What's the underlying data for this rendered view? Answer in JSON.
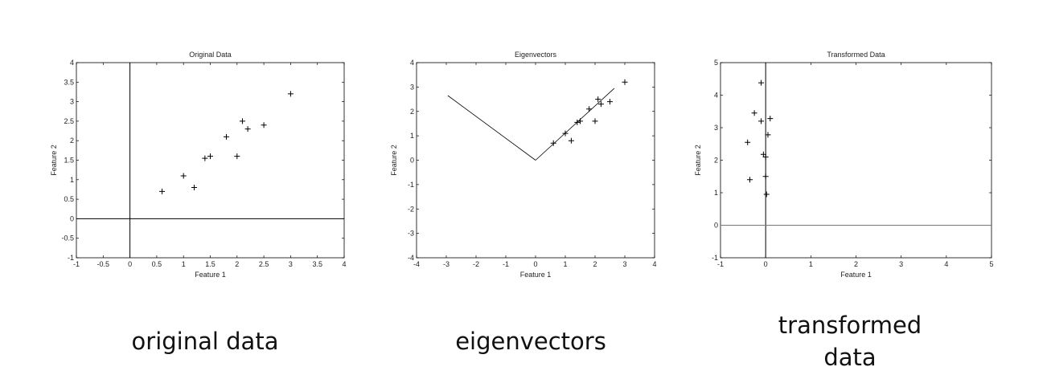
{
  "chart_data": [
    {
      "type": "scatter",
      "title": "Original Data",
      "xlabel": "Feature 1",
      "ylabel": "Feature 2",
      "xlim": [
        -1,
        4
      ],
      "ylim": [
        -1,
        4
      ],
      "xticks": [
        -1,
        -0.5,
        0,
        0.5,
        1,
        1.5,
        2,
        2.5,
        3,
        3.5,
        4
      ],
      "yticks": [
        -1,
        -0.5,
        0,
        0.5,
        1,
        1.5,
        2,
        2.5,
        3,
        3.5,
        4
      ],
      "grid": false,
      "points": [
        {
          "x": 0.6,
          "y": 0.7
        },
        {
          "x": 1.0,
          "y": 1.1
        },
        {
          "x": 1.2,
          "y": 0.8
        },
        {
          "x": 1.4,
          "y": 1.55
        },
        {
          "x": 1.5,
          "y": 1.6
        },
        {
          "x": 1.8,
          "y": 2.1
        },
        {
          "x": 2.0,
          "y": 1.6
        },
        {
          "x": 2.1,
          "y": 2.5
        },
        {
          "x": 2.2,
          "y": 2.3
        },
        {
          "x": 2.5,
          "y": 2.4
        },
        {
          "x": 3.0,
          "y": 3.2
        }
      ],
      "reference_lines": [
        {
          "orientation": "vertical",
          "value": 0
        },
        {
          "orientation": "horizontal",
          "value": 0
        }
      ],
      "caption": "original data"
    },
    {
      "type": "scatter",
      "title": "Eigenvectors",
      "xlabel": "Feature 1",
      "ylabel": "Feature 2",
      "xlim": [
        -4,
        4
      ],
      "ylim": [
        -4,
        4
      ],
      "xticks": [
        -4,
        -3,
        -2,
        -1,
        0,
        1,
        2,
        3,
        4
      ],
      "yticks": [
        -4,
        -3,
        -2,
        -1,
        0,
        1,
        2,
        3,
        4
      ],
      "grid": false,
      "points": [
        {
          "x": 0.6,
          "y": 0.7
        },
        {
          "x": 1.0,
          "y": 1.1
        },
        {
          "x": 1.2,
          "y": 0.8
        },
        {
          "x": 1.4,
          "y": 1.55
        },
        {
          "x": 1.5,
          "y": 1.6
        },
        {
          "x": 1.8,
          "y": 2.1
        },
        {
          "x": 2.0,
          "y": 1.6
        },
        {
          "x": 2.1,
          "y": 2.5
        },
        {
          "x": 2.2,
          "y": 2.3
        },
        {
          "x": 2.5,
          "y": 2.4
        },
        {
          "x": 3.0,
          "y": 3.2
        }
      ],
      "vectors": [
        {
          "from": [
            0,
            0
          ],
          "to": [
            -2.95,
            2.65
          ]
        },
        {
          "from": [
            0,
            0
          ],
          "to": [
            2.65,
            2.95
          ]
        }
      ],
      "caption": "eigenvectors"
    },
    {
      "type": "scatter",
      "title": "Transformed Data",
      "xlabel": "Feature 1",
      "ylabel": "Feature 2",
      "xlim": [
        -1,
        5
      ],
      "ylim": [
        -1,
        5
      ],
      "xticks": [
        -1,
        0,
        1,
        2,
        3,
        4,
        5
      ],
      "yticks": [
        -1,
        0,
        1,
        2,
        3,
        4,
        5
      ],
      "grid": false,
      "points": [
        {
          "x": -0.1,
          "y": 4.38
        },
        {
          "x": -0.25,
          "y": 3.45
        },
        {
          "x": -0.1,
          "y": 3.2
        },
        {
          "x": 0.1,
          "y": 3.28
        },
        {
          "x": 0.05,
          "y": 2.78
        },
        {
          "x": -0.4,
          "y": 2.55
        },
        {
          "x": -0.05,
          "y": 2.18
        },
        {
          "x": 0.0,
          "y": 2.1
        },
        {
          "x": 0.0,
          "y": 1.5
        },
        {
          "x": -0.35,
          "y": 1.4
        },
        {
          "x": 0.02,
          "y": 0.95
        }
      ],
      "reference_lines": [
        {
          "orientation": "vertical",
          "value": 0
        },
        {
          "orientation": "horizontal",
          "value": 0
        }
      ],
      "caption_lines": [
        "transformed",
        "data"
      ]
    }
  ]
}
